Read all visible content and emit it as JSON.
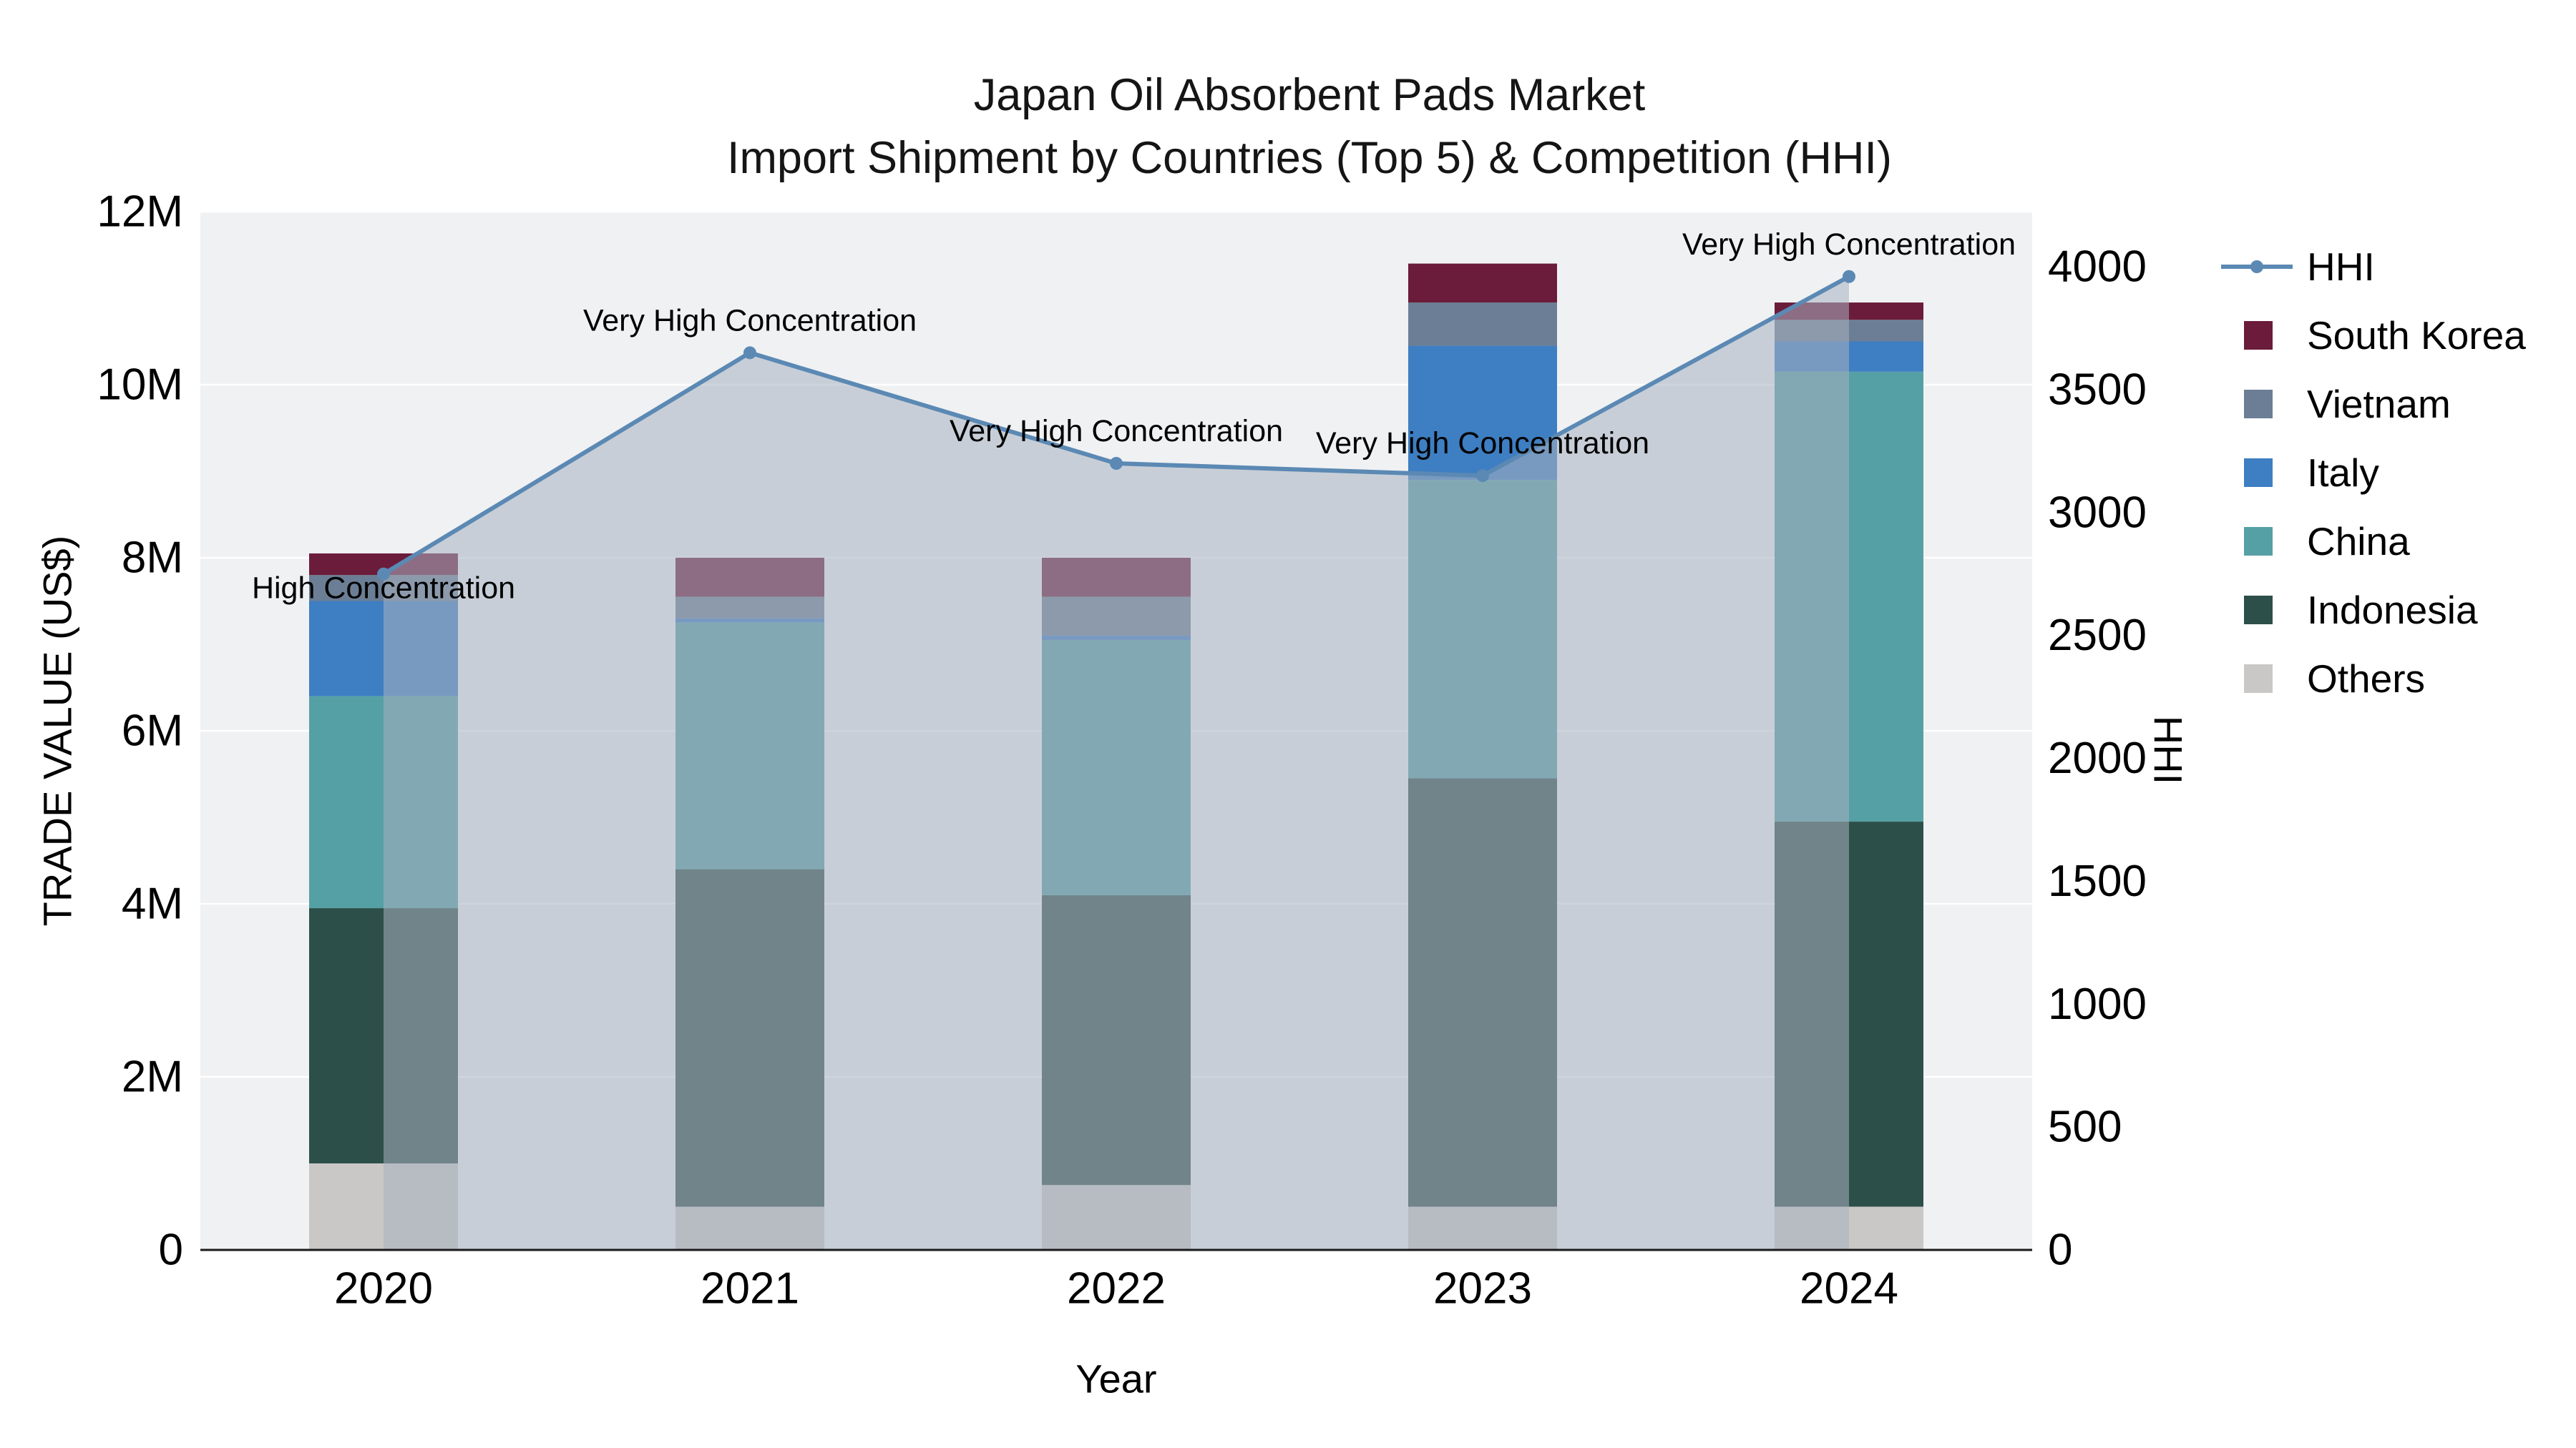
{
  "title": {
    "line1": "Japan Oil Absorbent Pads Market",
    "line2": "Import Shipment by Countries (Top 5) & Competition (HHI)"
  },
  "chart_data": {
    "type": "bar",
    "subtype": "stacked bars (left axis, trade value) with overlaid HHI line and shaded area (right axis)",
    "x": [
      "2020",
      "2021",
      "2022",
      "2023",
      "2024"
    ],
    "xlabel": "Year",
    "ylabel_left": "TRADE VALUE (US$)",
    "ylabel_right": "HHI",
    "unit_left": "millions of US$",
    "ylim_left": [
      0,
      12
    ],
    "ylim_right": [
      0,
      4000
    ],
    "grid": "horizontal white gridlines on light gray plot background",
    "legend_position": "right, outside plot",
    "yticks_left": [
      {
        "v": 0,
        "label": "0"
      },
      {
        "v": 2,
        "label": "2M"
      },
      {
        "v": 4,
        "label": "4M"
      },
      {
        "v": 6,
        "label": "6M"
      },
      {
        "v": 8,
        "label": "8M"
      },
      {
        "v": 10,
        "label": "10M"
      },
      {
        "v": 12,
        "label": "12M"
      }
    ],
    "yticks_right": [
      {
        "v": 0,
        "label": "0"
      },
      {
        "v": 500,
        "label": "500"
      },
      {
        "v": 1000,
        "label": "1000"
      },
      {
        "v": 1500,
        "label": "1500"
      },
      {
        "v": 2000,
        "label": "2000"
      },
      {
        "v": 2500,
        "label": "2500"
      },
      {
        "v": 3000,
        "label": "3000"
      },
      {
        "v": 3500,
        "label": "3500"
      },
      {
        "v": 4000,
        "label": "4000"
      }
    ],
    "series": [
      {
        "name": "Others",
        "color": "#cac8c6",
        "values": [
          1.0,
          0.5,
          0.75,
          0.5,
          0.5
        ]
      },
      {
        "name": "Indonesia",
        "color": "#2d4f4a",
        "values": [
          2.95,
          3.9,
          3.35,
          4.95,
          4.45
        ]
      },
      {
        "name": "China",
        "color": "#55a0a4",
        "values": [
          2.45,
          2.85,
          2.95,
          3.45,
          5.2
        ]
      },
      {
        "name": "Italy",
        "color": "#3e7ec2",
        "values": [
          1.1,
          0.05,
          0.05,
          1.55,
          0.35
        ]
      },
      {
        "name": "Vietnam",
        "color": "#6b7e95",
        "values": [
          0.3,
          0.25,
          0.45,
          0.5,
          0.25
        ]
      },
      {
        "name": "South Korea",
        "color": "#6b1c3a",
        "values": [
          0.25,
          0.45,
          0.45,
          0.45,
          0.2
        ]
      }
    ],
    "bar_totals": [
      8.05,
      8.0,
      8.0,
      11.4,
      10.95
    ],
    "line_series": {
      "name": "HHI",
      "color": "#5b89b4",
      "area_color": "rgba(168,177,192,0.55)",
      "values": [
        2750,
        3650,
        3200,
        3150,
        3960
      ]
    },
    "annotations": [
      {
        "x": "2020",
        "text": "High Concentration",
        "dy": 20
      },
      {
        "x": "2021",
        "text": "Very High Concentration",
        "dy": -45
      },
      {
        "x": "2022",
        "text": "Very High Concentration",
        "dy": -45
      },
      {
        "x": "2023",
        "text": "Very High Concentration",
        "dy": -45
      },
      {
        "x": "2024",
        "text": "Very High Concentration",
        "dy": -45
      }
    ],
    "legend": [
      "HHI",
      "South Korea",
      "Vietnam",
      "Italy",
      "China",
      "Indonesia",
      "Others"
    ]
  }
}
